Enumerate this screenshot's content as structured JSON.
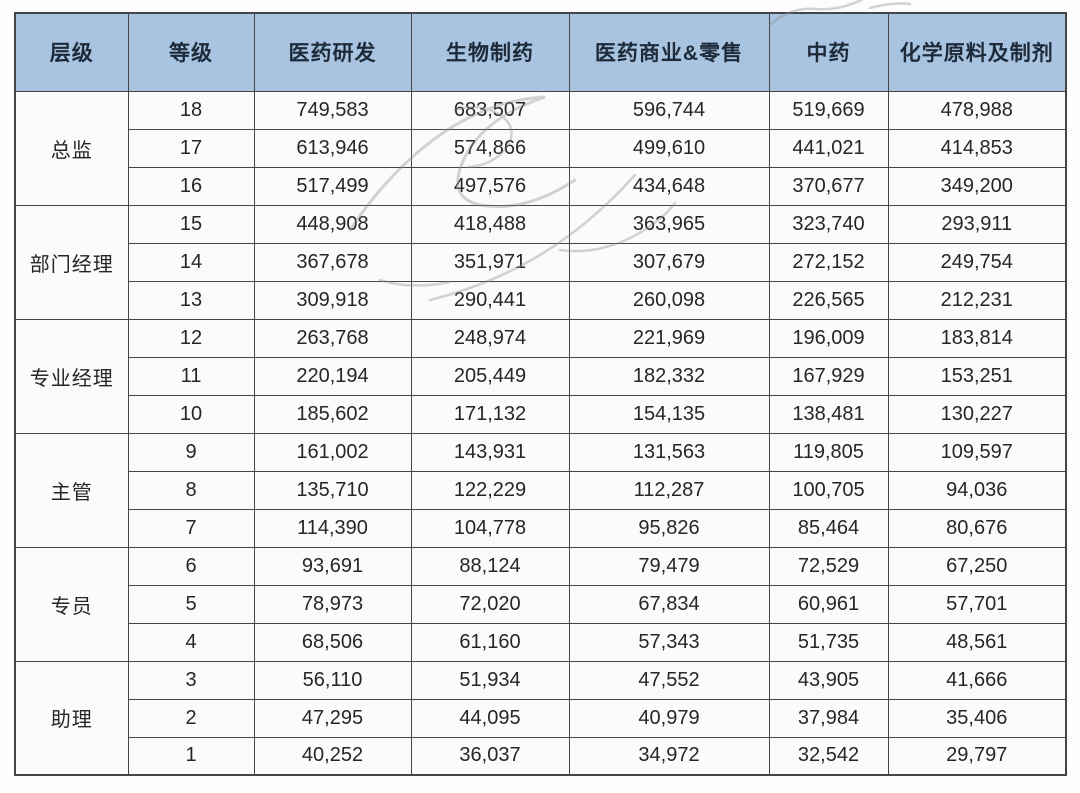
{
  "chart_data": {
    "type": "table",
    "title": "",
    "columns": [
      "层级",
      "等级",
      "医药研发",
      "生物制药",
      "医药商业&零售",
      "中药",
      "化学原料及制剂"
    ],
    "groups": [
      {
        "level": "总监",
        "rows": [
          {
            "grade": "18",
            "values": [
              "749,583",
              "683,507",
              "596,744",
              "519,669",
              "478,988"
            ]
          },
          {
            "grade": "17",
            "values": [
              "613,946",
              "574,866",
              "499,610",
              "441,021",
              "414,853"
            ]
          },
          {
            "grade": "16",
            "values": [
              "517,499",
              "497,576",
              "434,648",
              "370,677",
              "349,200"
            ]
          }
        ]
      },
      {
        "level": "部门经理",
        "rows": [
          {
            "grade": "15",
            "values": [
              "448,908",
              "418,488",
              "363,965",
              "323,740",
              "293,911"
            ]
          },
          {
            "grade": "14",
            "values": [
              "367,678",
              "351,971",
              "307,679",
              "272,152",
              "249,754"
            ]
          },
          {
            "grade": "13",
            "values": [
              "309,918",
              "290,441",
              "260,098",
              "226,565",
              "212,231"
            ]
          }
        ]
      },
      {
        "level": "专业经理",
        "rows": [
          {
            "grade": "12",
            "values": [
              "263,768",
              "248,974",
              "221,969",
              "196,009",
              "183,814"
            ]
          },
          {
            "grade": "11",
            "values": [
              "220,194",
              "205,449",
              "182,332",
              "167,929",
              "153,251"
            ]
          },
          {
            "grade": "10",
            "values": [
              "185,602",
              "171,132",
              "154,135",
              "138,481",
              "130,227"
            ]
          }
        ]
      },
      {
        "level": "主管",
        "rows": [
          {
            "grade": "9",
            "values": [
              "161,002",
              "143,931",
              "131,563",
              "119,805",
              "109,597"
            ]
          },
          {
            "grade": "8",
            "values": [
              "135,710",
              "122,229",
              "112,287",
              "100,705",
              "94,036"
            ]
          },
          {
            "grade": "7",
            "values": [
              "114,390",
              "104,778",
              "95,826",
              "85,464",
              "80,676"
            ]
          }
        ]
      },
      {
        "level": "专员",
        "rows": [
          {
            "grade": "6",
            "values": [
              "93,691",
              "88,124",
              "79,479",
              "72,529",
              "67,250"
            ]
          },
          {
            "grade": "5",
            "values": [
              "78,973",
              "72,020",
              "67,834",
              "60,961",
              "57,701"
            ]
          },
          {
            "grade": "4",
            "values": [
              "68,506",
              "61,160",
              "57,343",
              "51,735",
              "48,561"
            ]
          }
        ]
      },
      {
        "level": "助理",
        "rows": [
          {
            "grade": "3",
            "values": [
              "56,110",
              "51,934",
              "47,552",
              "43,905",
              "41,666"
            ]
          },
          {
            "grade": "2",
            "values": [
              "47,295",
              "44,095",
              "40,979",
              "37,984",
              "35,406"
            ]
          },
          {
            "grade": "1",
            "values": [
              "40,252",
              "36,037",
              "34,972",
              "32,542",
              "29,797"
            ]
          }
        ]
      }
    ],
    "layout": {
      "header_bg": "#a8c4e0",
      "header_text_color": "#1d2a3a",
      "body_text_color": "#262626",
      "border_color": "#454545",
      "grid": "on"
    }
  }
}
